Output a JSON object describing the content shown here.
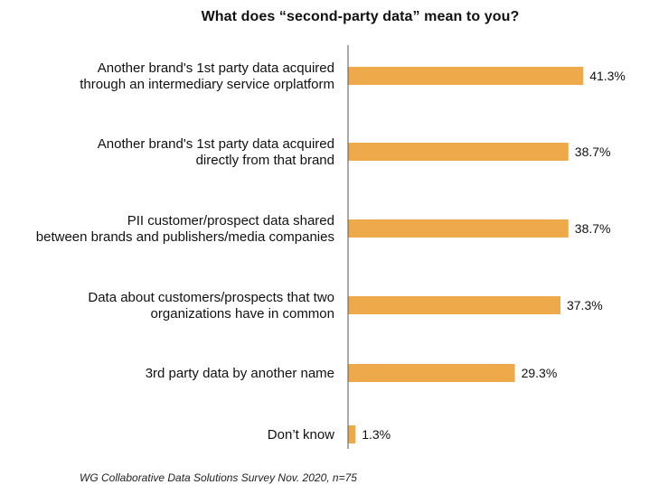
{
  "chart_data": {
    "type": "bar",
    "orientation": "horizontal",
    "title": "What does “second-party data” mean to you?",
    "categories": [
      [
        "Another brand's 1st party data acquired",
        "through an intermediary service orplatform"
      ],
      [
        "Another brand's 1st party data acquired",
        "directly from that brand"
      ],
      [
        "PII customer/prospect data shared",
        "between brands and publishers/media companies"
      ],
      [
        "Data about customers/prospects that two",
        "organizations have in common"
      ],
      [
        "3rd party data by another name"
      ],
      [
        "Don’t know"
      ]
    ],
    "values": [
      41.3,
      38.7,
      38.7,
      37.3,
      29.3,
      1.3
    ],
    "value_labels": [
      "41.3%",
      "38.7%",
      "38.7%",
      "37.3%",
      "29.3%",
      "1.3%"
    ],
    "bar_color": "#EEAA4A",
    "axis_color": "#555555",
    "xlim": [
      0,
      100
    ],
    "grid": false,
    "legend": "none"
  },
  "footnote": "WG Collaborative Data Solutions Survey Nov. 2020, n=75"
}
